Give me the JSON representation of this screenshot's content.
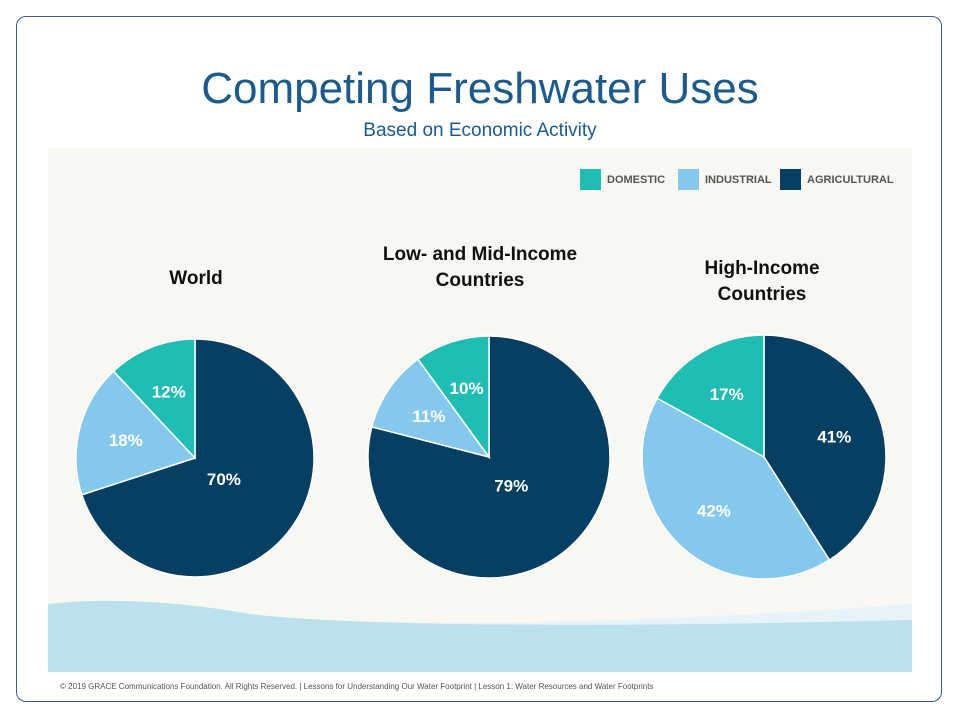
{
  "title": "Competing Freshwater Uses",
  "subtitle": "Based on Economic Activity",
  "legend": [
    {
      "label": "DOMESTIC",
      "color": "#20bdb5"
    },
    {
      "label": "INDUSTRIAL",
      "color": "#84c8ee"
    },
    {
      "label": "AGRICULTURAL",
      "color": "#073f63"
    }
  ],
  "chart_data": [
    {
      "type": "pie",
      "title": "World",
      "categories": [
        "Agricultural",
        "Industrial",
        "Domestic"
      ],
      "values": [
        70,
        18,
        12
      ],
      "labels": [
        "70%",
        "18%",
        "12%"
      ]
    },
    {
      "type": "pie",
      "title": "Low- and Mid-Income Countries",
      "categories": [
        "Agricultural",
        "Industrial",
        "Domestic"
      ],
      "values": [
        79,
        11,
        10
      ],
      "labels": [
        "79%",
        "11%",
        "10%"
      ]
    },
    {
      "type": "pie",
      "title": "High-Income Countries",
      "categories": [
        "Agricultural",
        "Industrial",
        "Domestic"
      ],
      "values": [
        41,
        42,
        17
      ],
      "labels": [
        "41%",
        "42%",
        "17%"
      ]
    }
  ],
  "footer": "© 2019  GRACE Communications  Foundation. All Rights Reserved.  |  Lessons for Understanding  Our Water Footprint  |  Lesson  1: Water Resources and Water Footprints"
}
